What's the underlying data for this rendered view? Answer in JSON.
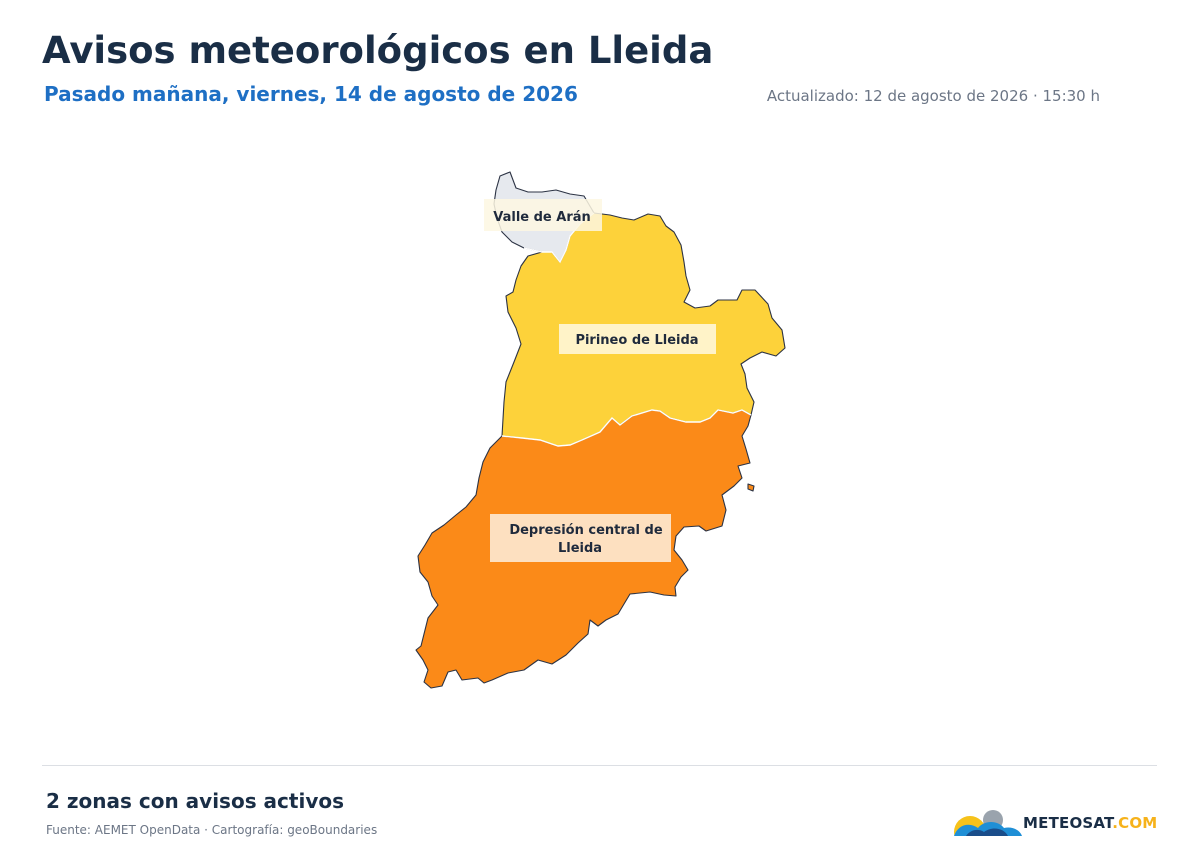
{
  "header": {
    "title": "Avisos meteorológicos en Lleida",
    "subtitle": "Pasado mañana, viernes, 14 de agosto de 2026",
    "updated": "Actualizado: 12 de agosto de 2026 · 15:30 h"
  },
  "map": {
    "zones": [
      {
        "name": "Valle de Arán",
        "label_lines": [
          "Valle de Arán"
        ],
        "warning_level": "none",
        "color": "#e6e9ee",
        "label_bg": "#fdf7e2"
      },
      {
        "name": "Pirineo de Lleida",
        "label_lines": [
          "Pirineo de Lleida"
        ],
        "warning_level": "yellow",
        "color": "#fdd23a",
        "label_bg": "#fff6d8"
      },
      {
        "name": "Depresión central de Lleida",
        "label_lines": [
          "Depresión central de",
          "Lleida"
        ],
        "warning_level": "orange",
        "color": "#fb8a18",
        "label_bg": "#fde7cf"
      }
    ]
  },
  "footer": {
    "summary": "2 zonas con avisos activos",
    "source": "Fuente: AEMET OpenData · Cartografía: geoBoundaries",
    "logo": {
      "text_main": "METEOSAT",
      "text_suffix": ".COM",
      "icon": "sun-cloud-icon"
    }
  }
}
